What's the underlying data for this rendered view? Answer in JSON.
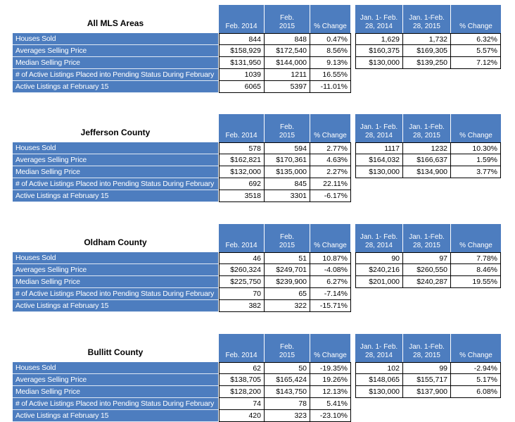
{
  "headers": [
    "Feb. 2014",
    "Feb.\n2015",
    "% Change",
    "Jan. 1- Feb.\n28, 2014",
    "Jan. 1-Feb.\n28, 2015",
    "% Change"
  ],
  "row_labels": [
    "Houses Sold",
    "Averages Selling Price",
    "Median Selling Price",
    "# of Active Listings Placed into Pending Status During February",
    "Active Listings at February 15"
  ],
  "sections": [
    {
      "title": "All MLS Areas",
      "rows": [
        [
          "844",
          "848",
          "0.47%",
          "1,629",
          "1,732",
          "6.32%"
        ],
        [
          "$158,929",
          "$172,540",
          "8.56%",
          "$160,375",
          "$169,305",
          "5.57%"
        ],
        [
          "$131,950",
          "$144,000",
          "9.13%",
          "$130,000",
          "$139,250",
          "7.12%"
        ],
        [
          "1039",
          "1211",
          "16.55%"
        ],
        [
          "6065",
          "5397",
          "-11.01%"
        ]
      ]
    },
    {
      "title": "Jefferson County",
      "rows": [
        [
          "578",
          "594",
          "2.77%",
          "1117",
          "1232",
          "10.30%"
        ],
        [
          "$162,821",
          "$170,361",
          "4.63%",
          "$164,032",
          "$166,637",
          "1.59%"
        ],
        [
          "$132,000",
          "$135,000",
          "2.27%",
          "$130,000",
          "$134,900",
          "3.77%"
        ],
        [
          "692",
          "845",
          "22.11%"
        ],
        [
          "3518",
          "3301",
          "-6.17%"
        ]
      ]
    },
    {
      "title": "Oldham County",
      "rows": [
        [
          "46",
          "51",
          "10.87%",
          "90",
          "97",
          "7.78%"
        ],
        [
          "$260,324",
          "$249,701",
          "-4.08%",
          "$240,216",
          "$260,550",
          "8.46%"
        ],
        [
          "$225,750",
          "$239,900",
          "6.27%",
          "$201,000",
          "$240,287",
          "19.55%"
        ],
        [
          "70",
          "65",
          "-7.14%"
        ],
        [
          "382",
          "322",
          "-15.71%"
        ]
      ]
    },
    {
      "title": "Bullitt County",
      "rows": [
        [
          "62",
          "50",
          "-19.35%",
          "102",
          "99",
          "-2.94%"
        ],
        [
          "$138,705",
          "$165,424",
          "19.26%",
          "$148,065",
          "$155,717",
          "5.17%"
        ],
        [
          "$128,200",
          "$143,750",
          "12.13%",
          "$130,000",
          "$137,900",
          "6.08%"
        ],
        [
          "74",
          "78",
          "5.41%"
        ],
        [
          "420",
          "323",
          "-23.10%"
        ]
      ]
    }
  ]
}
